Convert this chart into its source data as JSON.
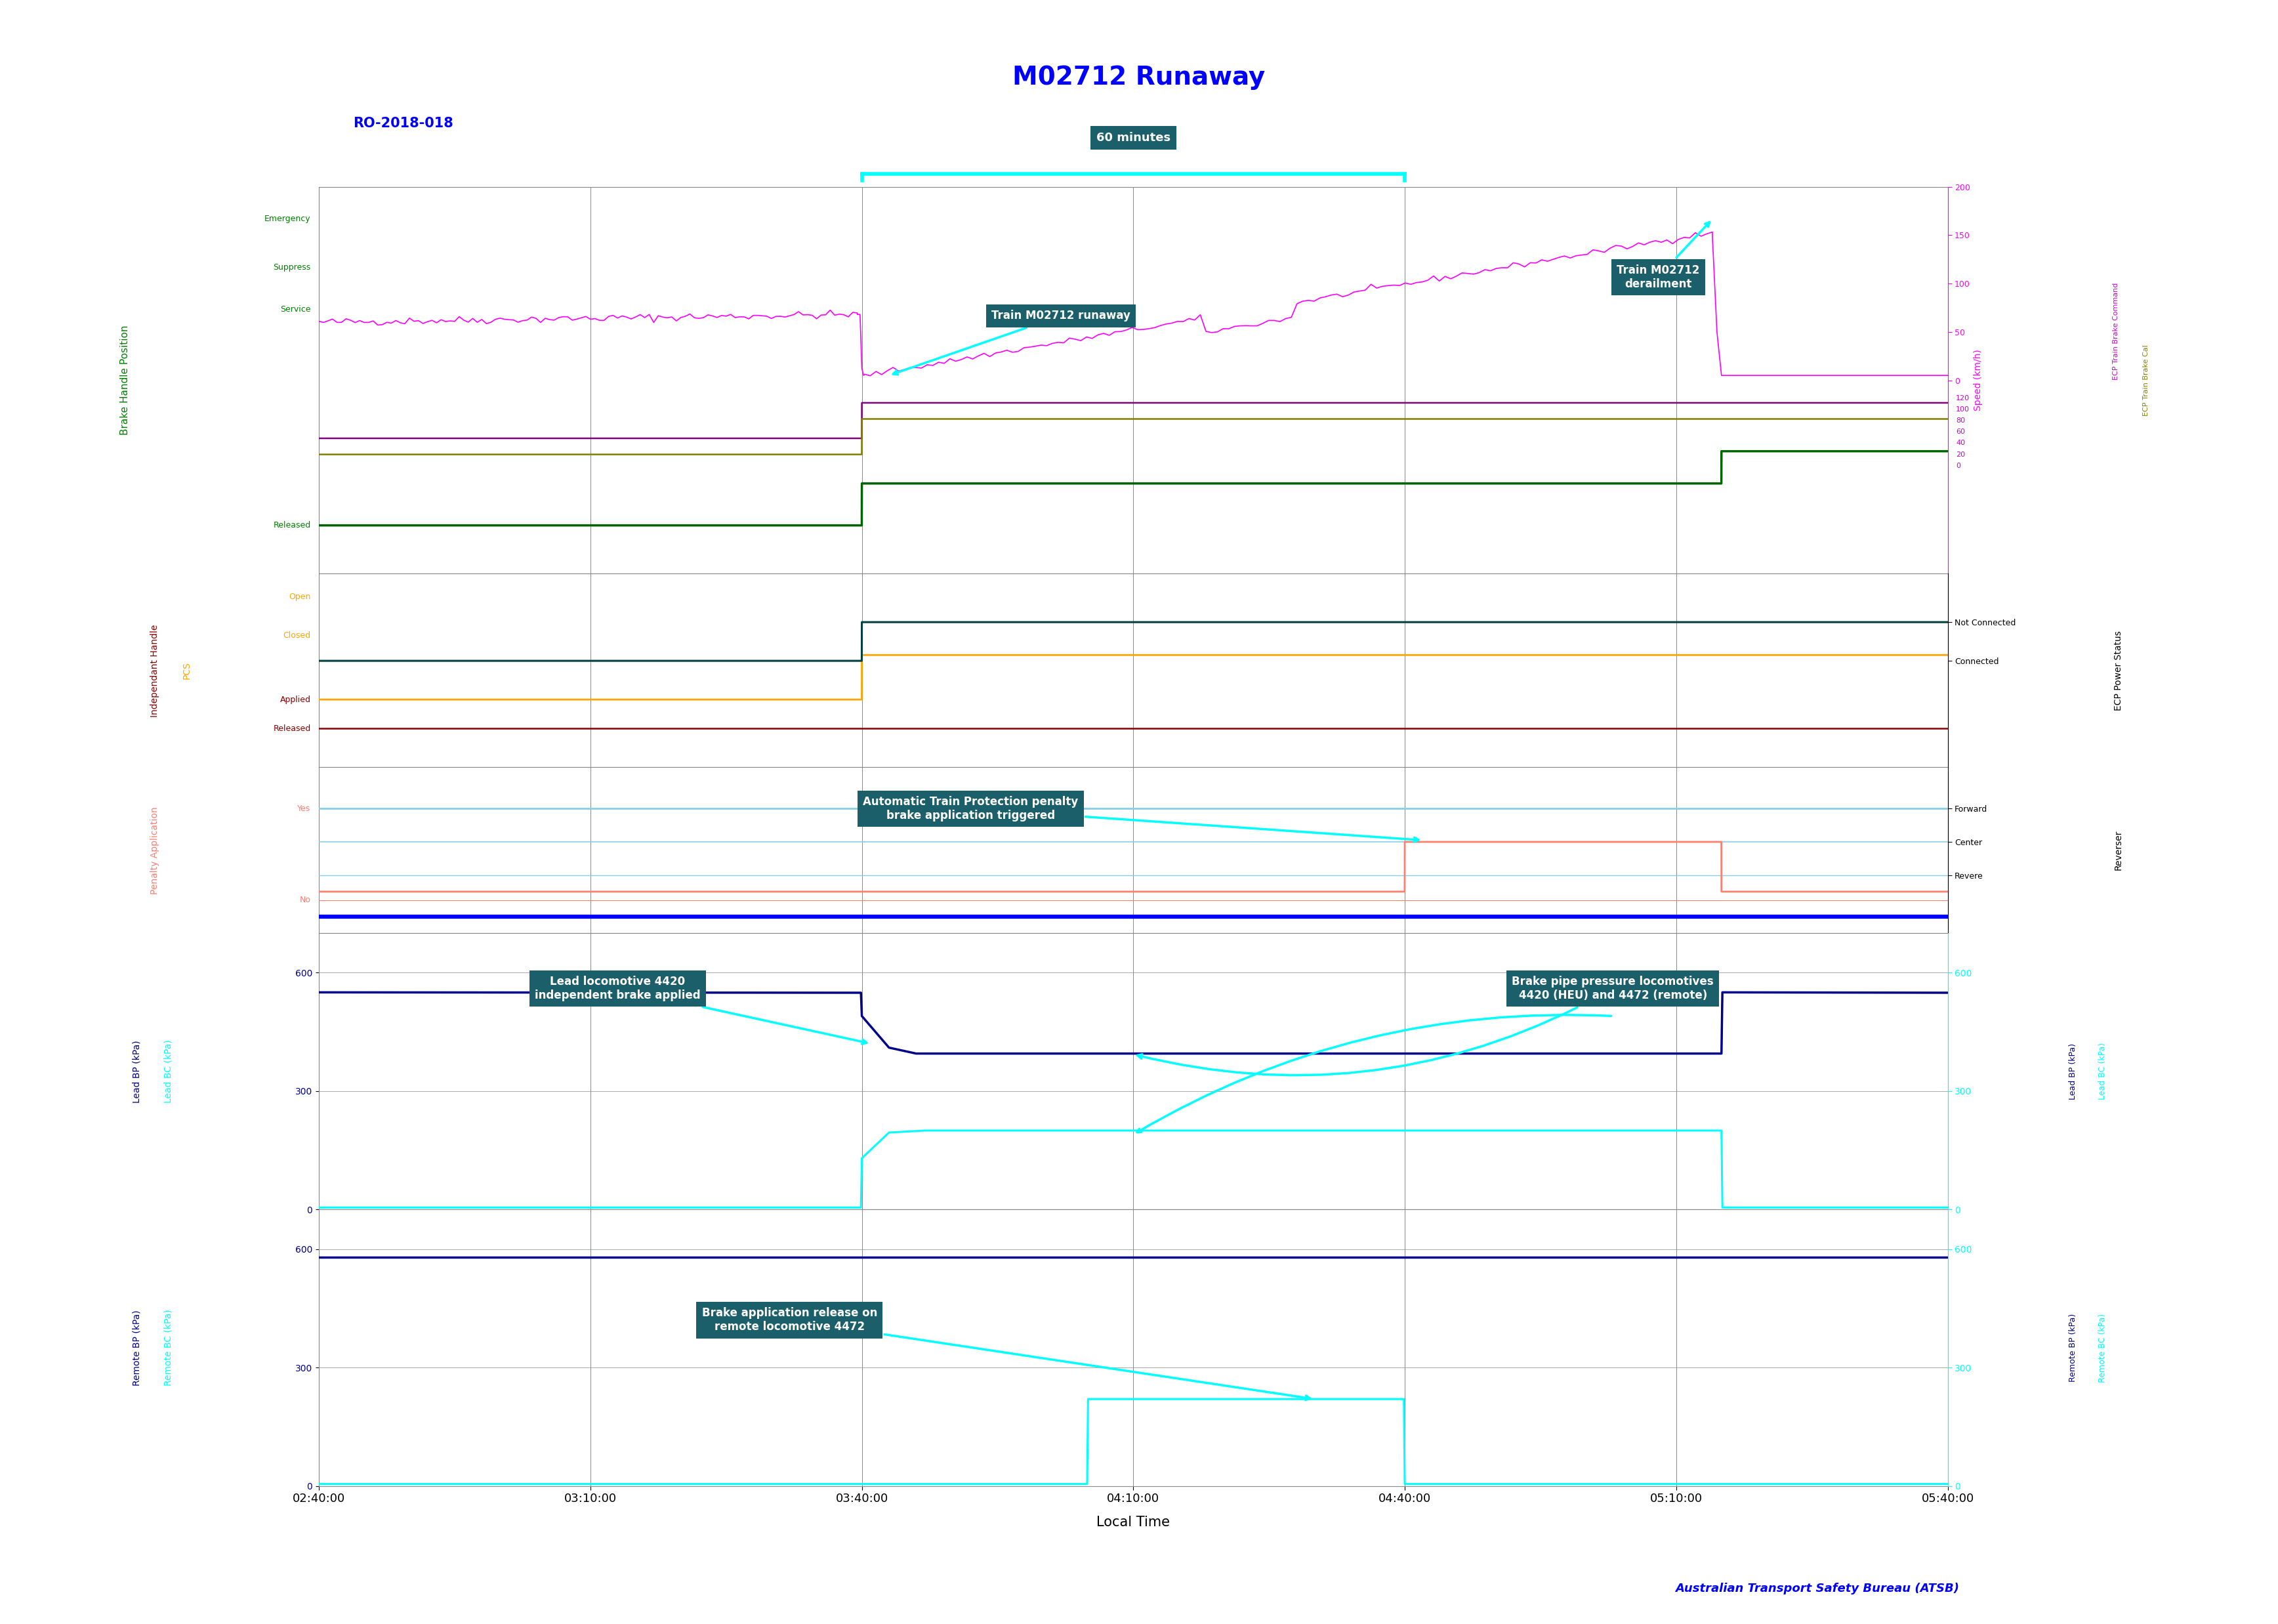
{
  "title": "M02712 Runaway",
  "subtitle": "RO-2018-018",
  "xlabel": "Local Time",
  "title_color": "#0000FF",
  "subtitle_color": "#0000FF",
  "atsb_text": "Australian Transport Safety Bureau (ATSB)",
  "atsb_color": "#0000FF",
  "time_ticks": [
    0,
    30,
    60,
    90,
    120,
    150,
    180
  ],
  "time_labels": [
    "02:40:00",
    "03:10:00",
    "03:40:00",
    "04:10:00",
    "04:40:00",
    "05:10:00",
    "05:40:00"
  ],
  "background_color": "#FFFFFF",
  "grid_color": "#888888",
  "ann_bg": "#1a5f6a",
  "ann_fg": "#FFFFFF",
  "cyan": "#00BFFF",
  "height_ratios": [
    2.8,
    1.4,
    1.2,
    2.0,
    2.0
  ]
}
